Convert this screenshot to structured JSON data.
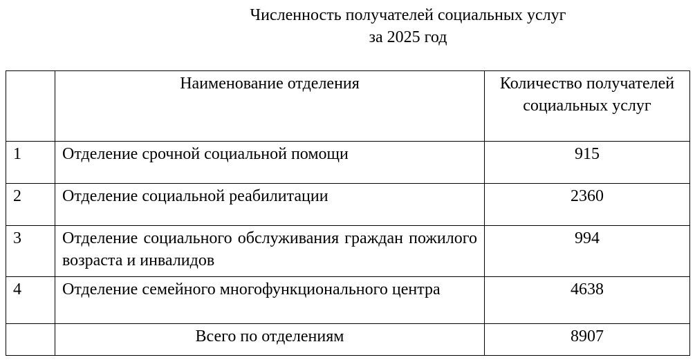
{
  "title": {
    "line1": "Численность получателей социальных услуг",
    "line2": "за 2025 год"
  },
  "table": {
    "headers": [
      "",
      "Наименование отделения",
      "Количество получателей социальных услуг"
    ],
    "rows": [
      {
        "num": "1",
        "name": "Отделение срочной социальной помощи",
        "count": "915"
      },
      {
        "num": "2",
        "name": "Отделение социальной реабилитации",
        "count": "2360"
      },
      {
        "num": "3",
        "name": "Отделение социального обслуживания граждан пожилого возраста и инвалидов",
        "count": "994"
      },
      {
        "num": "4",
        "name": "Отделение семейного многофункционального центра",
        "count": "4638"
      }
    ],
    "total": {
      "label": "Всего по отделениям",
      "count": "8907"
    }
  }
}
